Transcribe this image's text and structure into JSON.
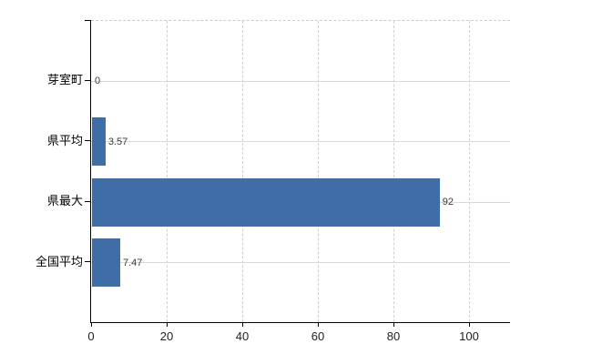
{
  "chart_data": {
    "type": "bar",
    "orientation": "horizontal",
    "title": "",
    "xlabel": "",
    "ylabel": "",
    "categories": [
      "芽室町",
      "県平均",
      "県最大",
      "全国平均"
    ],
    "values": [
      0,
      3.57,
      92,
      7.47
    ],
    "value_labels": [
      "0",
      "3.57",
      "92",
      "7.47"
    ],
    "xlim": [
      0,
      110.8
    ],
    "xticks": [
      0,
      20,
      40,
      60,
      80,
      100
    ],
    "xtick_labels": [
      "0",
      "20",
      "40",
      "60",
      "80",
      "100"
    ],
    "grid": {
      "horizontal_lines": "solid, one per category",
      "vertical_lines": "dashed, every 20 units",
      "top_border": "dashed"
    },
    "legend": "none"
  },
  "colors": {
    "bar": "#3e6da8",
    "axis": "#000000",
    "grid_horizontal": "#d9d9d9",
    "grid_vertical": "#d2cdd2",
    "value_label_text": "#3a3a3a",
    "tick_label_text": "#1f1f1f",
    "category_label_text": "#000000",
    "background": "#ffffff"
  }
}
